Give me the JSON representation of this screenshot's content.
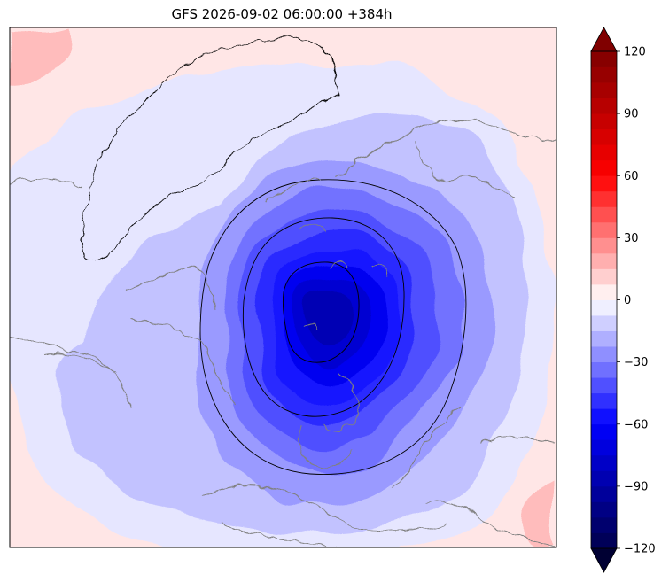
{
  "chart_data": {
    "type": "heatmap",
    "title": "GFS 2026-09-02 06:00:00 +384h",
    "xlabel": "",
    "ylabel": "",
    "map": {
      "projection": "north-polar",
      "coastlines": true,
      "contours": true
    },
    "colorbar": {
      "orientation": "vertical",
      "placement": "right",
      "min": -120,
      "max": 120,
      "step": 7.5,
      "extend": "both",
      "ticks": [
        120,
        90,
        60,
        30,
        0,
        -30,
        -60,
        -90,
        -120
      ],
      "tick_labels": [
        "120",
        "90",
        "60",
        "30",
        "0",
        "−30",
        "−60",
        "−90",
        "−120"
      ],
      "colormap": "seismic",
      "colors": {
        "deep_negative": "#000033",
        "mid_negative": "#0000ff",
        "near_zero_negative": "#e6e6ff",
        "near_zero_positive": "#ffe6e6",
        "mid_positive": "#ff0000",
        "deep_positive": "#800000"
      }
    },
    "field_levels_visible": [
      -67.5,
      -60,
      -52.5,
      -45,
      -37.5,
      -30,
      -22.5,
      -15,
      -7.5,
      0,
      7.5
    ],
    "center_min_level": -67.5
  }
}
